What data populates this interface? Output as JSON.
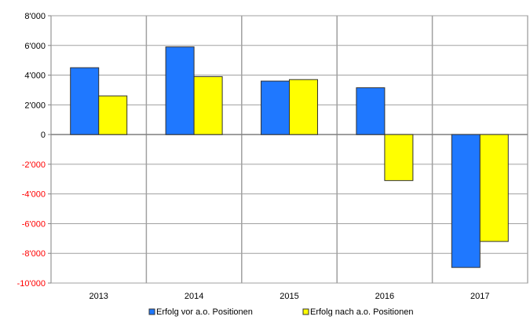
{
  "chart_data": {
    "type": "bar",
    "categories": [
      "2013",
      "2014",
      "2015",
      "2016",
      "2017"
    ],
    "series": [
      {
        "name": "Erfolg vor a.o. Positionen",
        "values": [
          4500,
          5900,
          3600,
          3150,
          -8950
        ],
        "color": "#1f78ff"
      },
      {
        "name": "Erfolg nach a.o. Positionen",
        "values": [
          2600,
          3900,
          3700,
          -3100,
          -7200
        ],
        "color": "#ffff00"
      }
    ],
    "ylim": [
      -10000,
      8000
    ],
    "yticks": [
      8000,
      6000,
      4000,
      2000,
      0,
      -2000,
      -4000,
      -6000,
      -8000,
      -10000
    ],
    "ytick_labels": [
      "8'000",
      "6'000",
      "4'000",
      "2'000",
      "0",
      "-2'000",
      "-4'000",
      "-6'000",
      "-8'000",
      "-10'000"
    ],
    "positive_tick_color": "#000000",
    "negative_tick_color": "#ff0000",
    "grid": true,
    "legend_position": "bottom"
  }
}
